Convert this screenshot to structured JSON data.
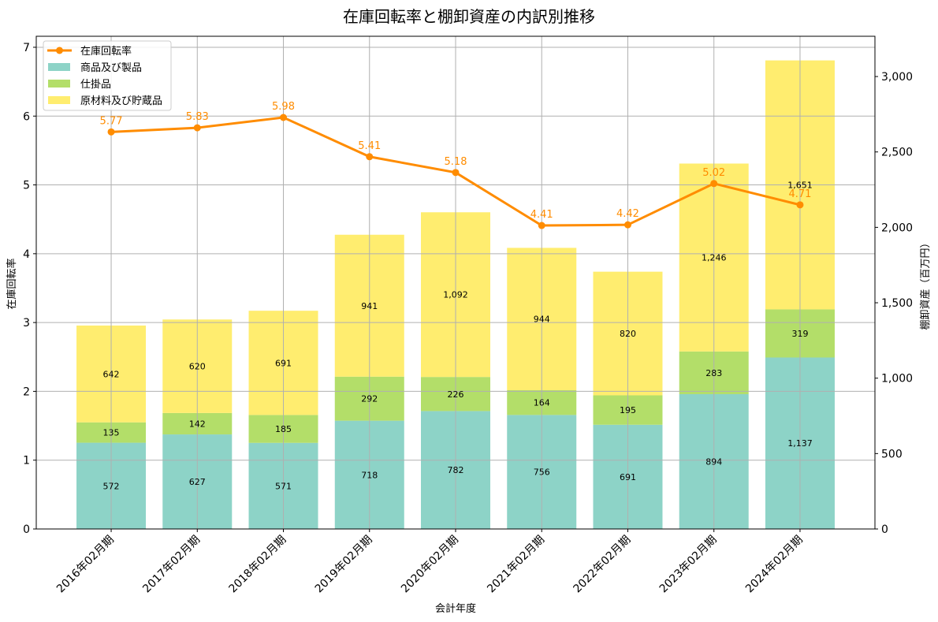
{
  "chart_data": {
    "type": "bar",
    "title": "在庫回転率と棚卸資産の内訳別推移",
    "xlabel": "会計年度",
    "ylabel": "在庫回転率",
    "ylabel_right": "棚卸資産（百万円）",
    "categories": [
      "2016年02月期",
      "2017年02月期",
      "2018年02月期",
      "2019年02月期",
      "2020年02月期",
      "2021年02月期",
      "2022年02月期",
      "2023年02月期",
      "2024年02月期"
    ],
    "series": [
      {
        "name": "商品及び製品",
        "type": "stacked-bar",
        "axis": "right",
        "color": "#8dd3c7",
        "values": [
          572,
          627,
          571,
          718,
          782,
          756,
          691,
          894,
          1137
        ]
      },
      {
        "name": "仕掛品",
        "type": "stacked-bar",
        "axis": "right",
        "color": "#b3de69",
        "values": [
          135,
          142,
          185,
          292,
          226,
          164,
          195,
          283,
          319
        ]
      },
      {
        "name": "原材料及び貯蔵品",
        "type": "stacked-bar",
        "axis": "right",
        "color": "#ffed6f",
        "values": [
          642,
          620,
          691,
          941,
          1092,
          944,
          820,
          1246,
          1651
        ]
      },
      {
        "name": "在庫回転率",
        "type": "line",
        "axis": "left",
        "color": "#ff8c00",
        "values": [
          5.77,
          5.83,
          5.98,
          5.41,
          5.18,
          4.41,
          4.42,
          5.02,
          4.71
        ]
      }
    ],
    "ylim": [
      0,
      7.16
    ],
    "ylim_right": [
      0,
      3267
    ],
    "yticks": [
      0,
      1,
      2,
      3,
      4,
      5,
      6,
      7
    ],
    "yticks_right": [
      0,
      500,
      1000,
      1500,
      2000,
      2500,
      3000
    ],
    "grid": true,
    "legend": "top-left"
  }
}
